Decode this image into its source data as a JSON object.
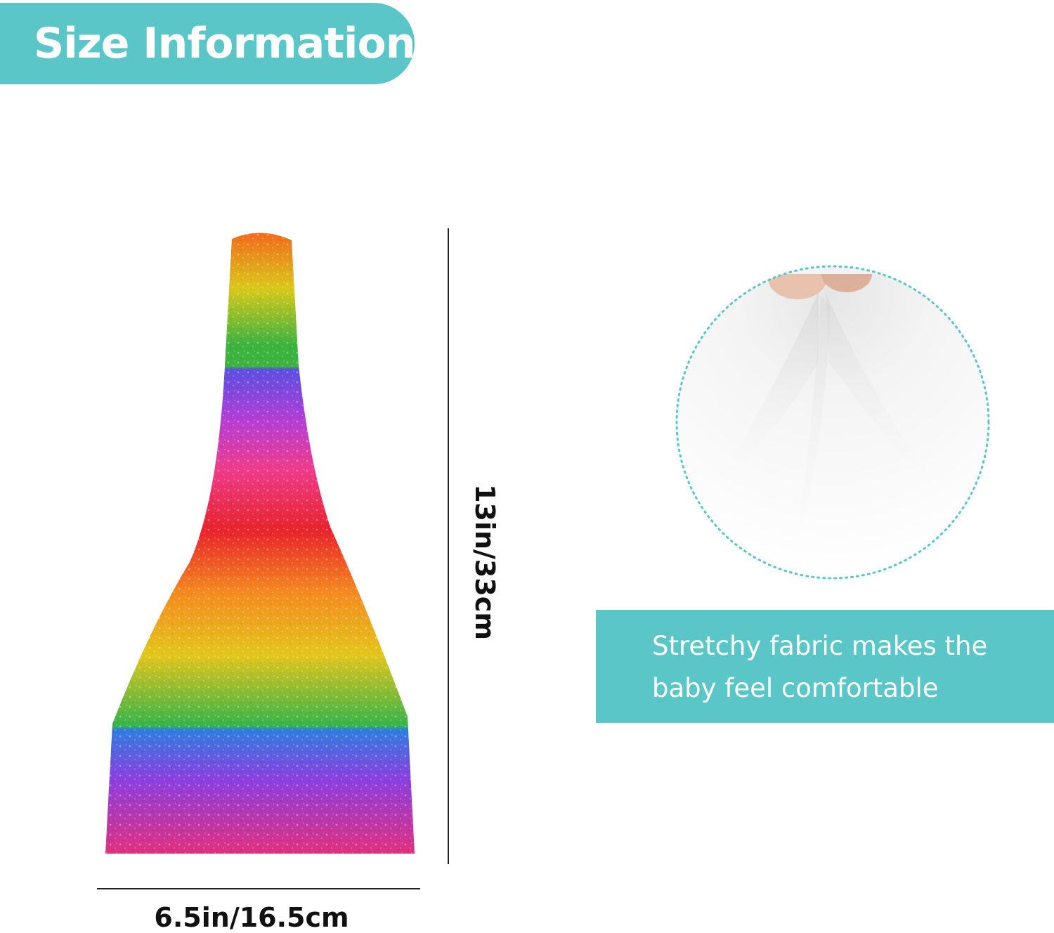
{
  "header": {
    "title": "Size Information"
  },
  "dimensions": {
    "height": "13in/33cm",
    "width": "6.5in/16.5cm"
  },
  "feature": {
    "line1": "Stretchy fabric makes the",
    "line2": "baby feel comfortable"
  },
  "colors": {
    "accent": "#5ac6c7",
    "text_dark": "#111111",
    "rainbow": [
      "#f26a1b",
      "#d9c81a",
      "#3db33f",
      "#5a4fe0",
      "#b23ed6",
      "#ef3b8c",
      "#e8232a",
      "#f58a1f",
      "#e3c61b",
      "#34b34a",
      "#2e7de0",
      "#8b3fe0",
      "#e0307e"
    ]
  },
  "icons": {
    "product": "rainbow-glitter-headband-image",
    "fabric": "stretchy-fabric-closeup-image"
  }
}
